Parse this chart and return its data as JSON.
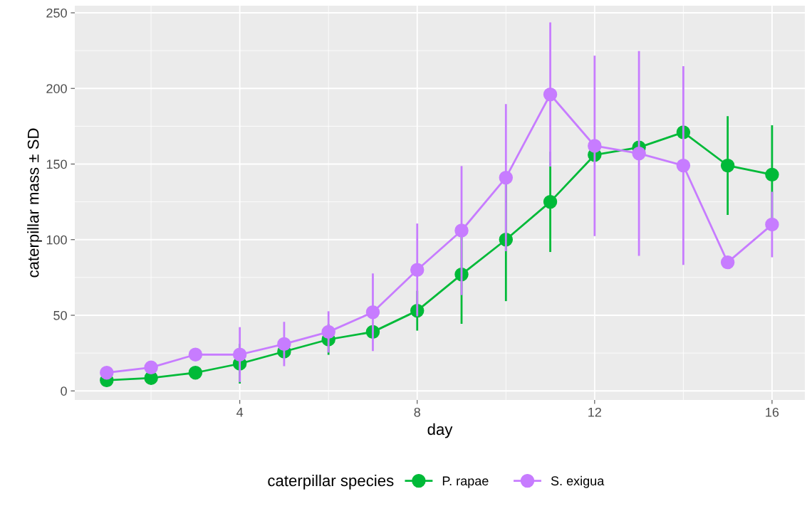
{
  "chart_data": {
    "type": "line",
    "xlabel": "day",
    "ylabel": "caterpillar mass ± SD",
    "legend_title": "caterpillar species",
    "x": [
      1,
      2,
      3,
      4,
      5,
      6,
      7,
      8,
      9,
      10,
      11,
      12,
      13,
      14,
      15,
      16
    ],
    "series": [
      {
        "name": "P. rapae",
        "color": "#00ba38",
        "values": [
          7,
          8.5,
          12,
          18,
          26,
          34,
          39,
          53,
          77,
          100,
          125,
          156,
          161,
          171,
          149,
          143
        ],
        "errors": [
          null,
          null,
          null,
          12.5,
          null,
          9.5,
          null,
          12.5,
          32,
          40,
          32.5,
          null,
          null,
          null,
          32,
          32
        ]
      },
      {
        "name": "S. exigua",
        "color": "#c77cff",
        "values": [
          12,
          15.5,
          24,
          24,
          31,
          39,
          52,
          80,
          106,
          141,
          196,
          162,
          157,
          149,
          85,
          110
        ],
        "errors": [
          null,
          null,
          null,
          17.5,
          14,
          13,
          25,
          30,
          42,
          48,
          47,
          59,
          67,
          65,
          null,
          21
        ]
      }
    ],
    "xlim": [
      0.28,
      16.74
    ],
    "xticks": [
      4,
      8,
      12,
      16
    ],
    "ylim": [
      -6,
      254.7
    ],
    "yticks": [
      0,
      50,
      100,
      150,
      200,
      250
    ],
    "grid": true,
    "legend": "bottom",
    "marker": "circle",
    "line_style": "solid"
  }
}
